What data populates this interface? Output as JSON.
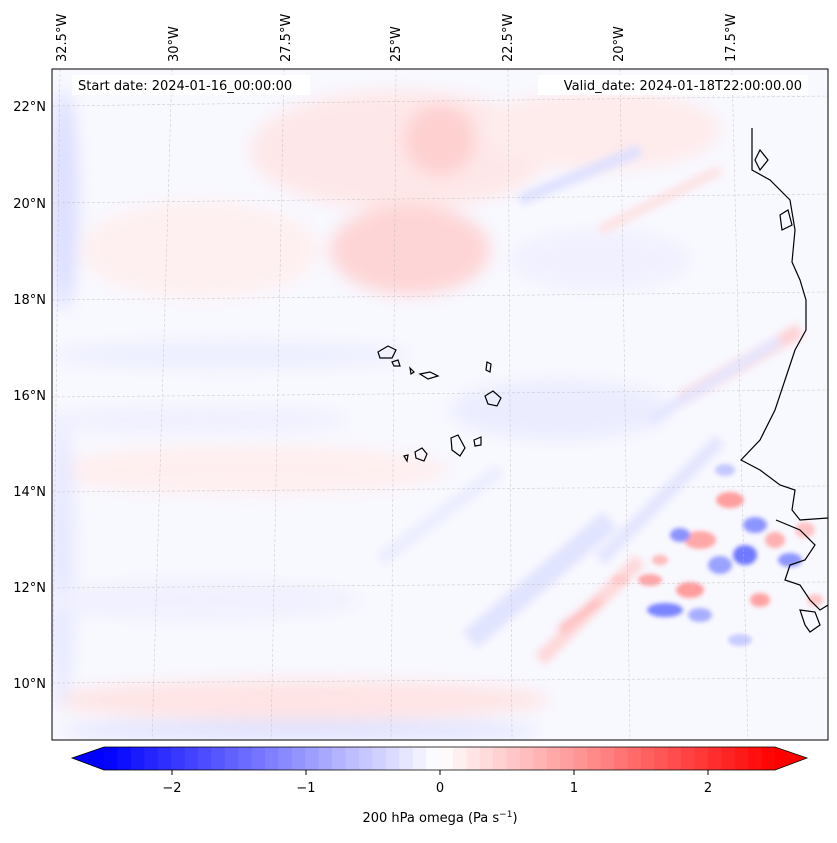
{
  "map": {
    "start_label": "Start date: 2024-01-16_00:00:00",
    "valid_label": "Valid_date: 2024-01-18T22:00:00.00",
    "lon_labels": [
      "32.5°W",
      "30°W",
      "27.5°W",
      "25°W",
      "22.5°W",
      "20°W",
      "17.5°W"
    ],
    "lat_labels": [
      "22°N",
      "20°N",
      "18°N",
      "16°N",
      "14°N",
      "12°N",
      "10°N"
    ]
  },
  "colorbar": {
    "ticks": [
      "−2",
      "−1",
      "0",
      "1",
      "2"
    ],
    "label_main": "200 hPa omega (Pa s",
    "label_sup": "−1",
    "label_end": ")",
    "vmin": -2.7,
    "vmax": 2.7,
    "neg_color": "#0000ff",
    "pos_color": "#ff0000"
  }
}
